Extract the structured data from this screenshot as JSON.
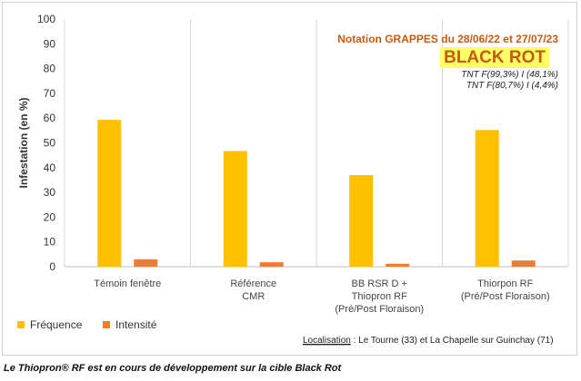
{
  "chart_data": {
    "type": "bar",
    "title": "BLACK ROT",
    "subtitle": "Notation GRAPPES du 28/06/22 et 27/07/23",
    "annotations": [
      "TNT F(99,3%) I (48,1%)",
      "TNT F(80,7%) I (4,4%)"
    ],
    "ylabel": "Infestation (en %)",
    "xlabel": "",
    "ylim": [
      0,
      100
    ],
    "yticks": [
      "0",
      "10",
      "20",
      "30",
      "40",
      "50",
      "60",
      "70",
      "80",
      "90",
      "100"
    ],
    "grid": "vertical category separators",
    "legend_position": "bottom-left",
    "categories": [
      [
        "Témoin fenêtre"
      ],
      [
        "Référence",
        "CMR"
      ],
      [
        "BB RSR D +",
        "Thiopron RF",
        "(Pré/Post Floraison)"
      ],
      [
        "Thiorpon RF",
        "(Pré/Post Floraison)"
      ]
    ],
    "series": [
      {
        "name": "Fréquence",
        "color": "#ffc000",
        "values": [
          59.3,
          46.7,
          37.0,
          55.2
        ]
      },
      {
        "name": "Intensité",
        "color": "#ed7d31",
        "values": [
          3.0,
          1.8,
          1.2,
          2.5
        ]
      }
    ],
    "highlight_color": "#ffff66"
  },
  "localisation": {
    "label": "Localisation",
    "text": " : Le Tourne (33) et La Chapelle sur Guinchay (71)"
  },
  "caption": "Le Thiopron® RF est en cours de développement sur la cible Black Rot"
}
